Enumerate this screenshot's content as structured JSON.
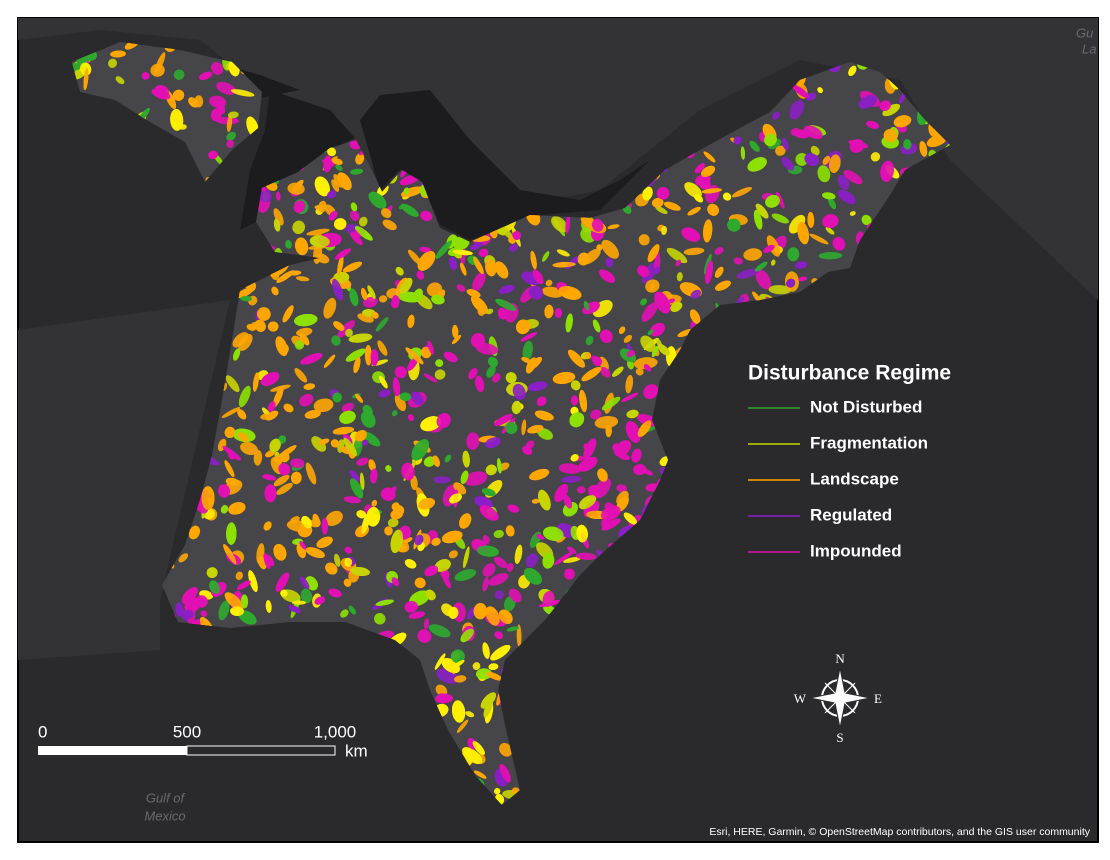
{
  "legend": {
    "title": "Disturbance Regime",
    "items": [
      {
        "label": "Not Disturbed",
        "color": "#2fa82f"
      },
      {
        "label": "Fragmentation",
        "color": "#c8d400"
      },
      {
        "label": "Landscape",
        "color": "#ffa600"
      },
      {
        "label": "Regulated",
        "color": "#8a1fc4"
      },
      {
        "label": "Impounded",
        "color": "#e20fb4"
      }
    ]
  },
  "extra_colors": {
    "bright": "#ffee00",
    "lime": "#8ee000"
  },
  "scale_bar": {
    "labels": [
      "0",
      "500",
      "1,000"
    ],
    "unit": "km"
  },
  "compass": {
    "n": "N",
    "e": "E",
    "s": "S",
    "w": "W"
  },
  "basemap_labels": {
    "gulf": [
      "Gulf of",
      "Mexico"
    ],
    "corner": [
      "Gu",
      "La"
    ]
  },
  "attribution": "Esri, HERE, Garmin, © OpenStreetMap contributors, and the GIS user community"
}
